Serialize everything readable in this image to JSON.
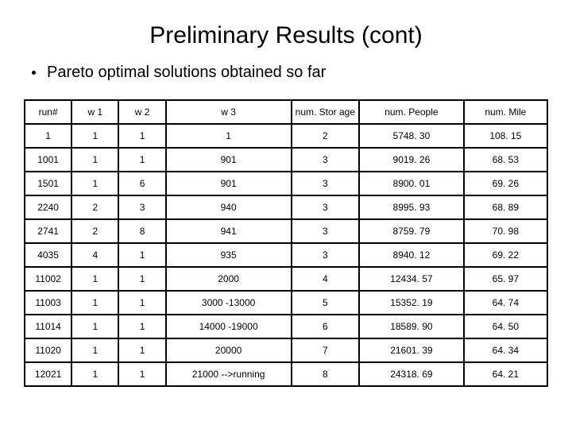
{
  "title": "Preliminary Results (cont)",
  "bullet": "Pareto optimal solutions obtained so far",
  "table": {
    "columns": [
      "run#",
      "w 1",
      "w 2",
      "w 3",
      "num. Stor age",
      "num. People",
      "num. Mile"
    ],
    "rows": [
      [
        "1",
        "1",
        "1",
        "1",
        "2",
        "5748. 30",
        "108. 15"
      ],
      [
        "1001",
        "1",
        "1",
        "901",
        "3",
        "9019. 26",
        "68. 53"
      ],
      [
        "1501",
        "1",
        "6",
        "901",
        "3",
        "8900. 01",
        "69. 26"
      ],
      [
        "2240",
        "2",
        "3",
        "940",
        "3",
        "8995. 93",
        "68. 89"
      ],
      [
        "2741",
        "2",
        "8",
        "941",
        "3",
        "8759. 79",
        "70. 98"
      ],
      [
        "4035",
        "4",
        "1",
        "935",
        "3",
        "8940. 12",
        "69. 22"
      ],
      [
        "11002",
        "1",
        "1",
        "2000",
        "4",
        "12434. 57",
        "65. 97"
      ],
      [
        "11003",
        "1",
        "1",
        "3000 -13000",
        "5",
        "15352. 19",
        "64. 74"
      ],
      [
        "11014",
        "1",
        "1",
        "14000 -19000",
        "6",
        "18589. 90",
        "64. 50"
      ],
      [
        "11020",
        "1",
        "1",
        "20000",
        "7",
        "21601. 39",
        "64. 34"
      ],
      [
        "12021",
        "1",
        "1",
        "21000 -->running",
        "8",
        "24318. 69",
        "64. 21"
      ]
    ]
  },
  "style": {
    "background_color": "#ffffff",
    "text_color": "#000000",
    "border_color": "#000000",
    "title_fontsize": 30,
    "bullet_fontsize": 20,
    "table_fontsize": 12
  }
}
